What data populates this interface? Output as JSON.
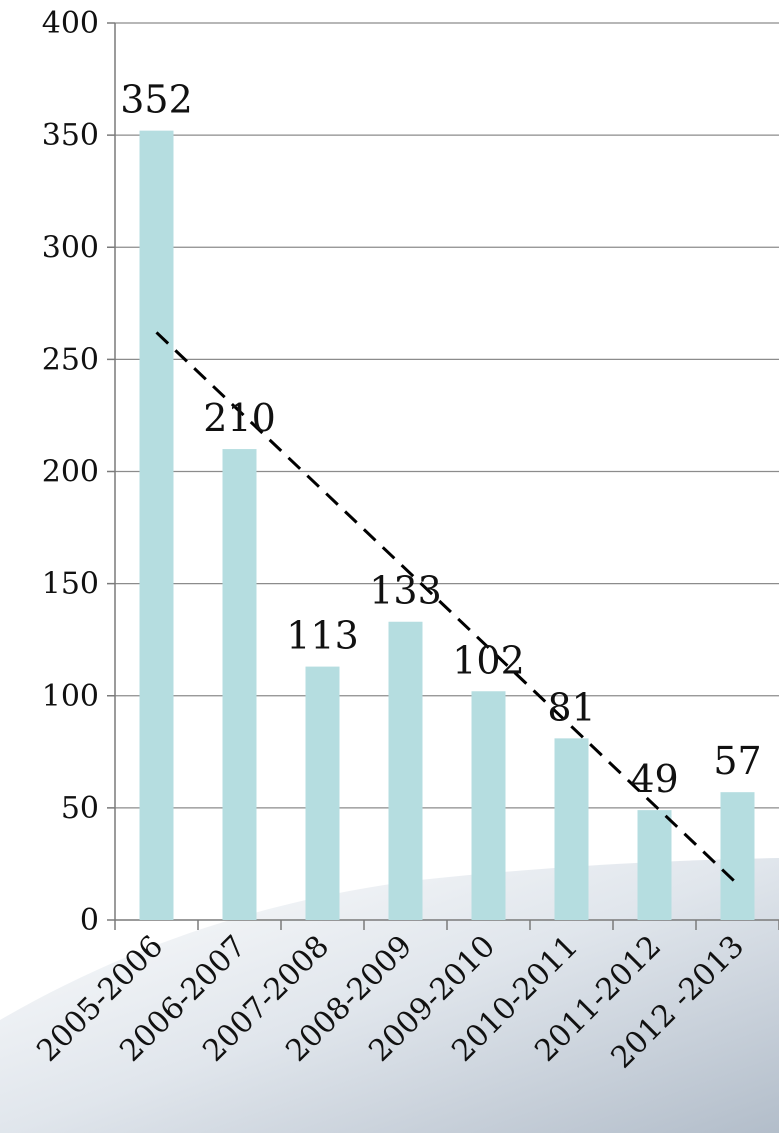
{
  "chart_data": {
    "type": "bar",
    "categories": [
      "2005-2006",
      "2006-2007",
      "2007-2008",
      "2008-2009",
      "2009-2010",
      "2010-2011",
      "2011-2012",
      "2012 -2013"
    ],
    "values": [
      352,
      210,
      113,
      133,
      102,
      81,
      49,
      57
    ],
    "data_labels": [
      "352",
      "210",
      "113",
      "133",
      "102",
      "81",
      "49",
      "57"
    ],
    "yticks": [
      "0",
      "50",
      "100",
      "150",
      "200",
      "250",
      "300",
      "350",
      "400"
    ],
    "ylim": [
      0,
      400
    ],
    "grid": true,
    "title": "",
    "xlabel": "",
    "ylabel": "",
    "bar_color": "#b5dde0",
    "trendline": {
      "type": "linear",
      "style": "dashed",
      "color": "#000000",
      "start_value": 262,
      "end_value": 16
    }
  }
}
